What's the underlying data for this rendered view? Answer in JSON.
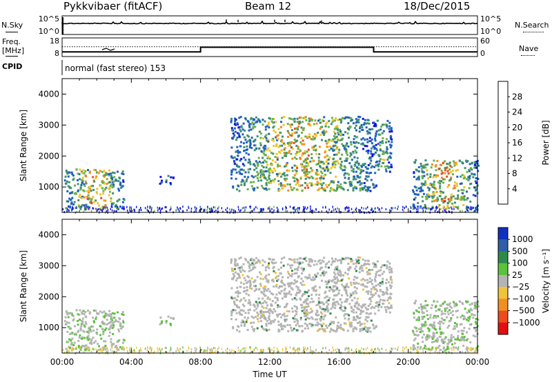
{
  "header": {
    "station": "Pykkvibaer (fitACF)",
    "beam": "Beam 12",
    "date": "18/Dec/2015"
  },
  "left_labels": {
    "nsky": "N.Sky",
    "freq_line1": "Freq.",
    "freq_line2": "[MHz]",
    "cpid": "CPID"
  },
  "right_labels": {
    "nsearch": "N.Search",
    "nave": "Nave"
  },
  "cpid_text": "normal (fast stereo) 153",
  "chart_data": [
    {
      "type": "line",
      "panel": "noise",
      "left_ticks": [
        "10^5",
        "10^0"
      ],
      "right_ticks": [
        "10^5",
        "10^0"
      ],
      "left_axis": "N.Sky",
      "right_axis": "N.Search",
      "grid": false
    },
    {
      "type": "line",
      "panel": "frequency",
      "left_ticks": [
        "18",
        "8"
      ],
      "right_ticks": [
        "60",
        "0"
      ],
      "left_axis": "Freq. [MHz]",
      "right_axis": "Nave",
      "freq_segments": [
        {
          "start_h": 0,
          "end_h": 8,
          "mhz": 10.5
        },
        {
          "start_h": 8,
          "end_h": 18,
          "mhz": 13.0
        },
        {
          "start_h": 18,
          "end_h": 24,
          "mhz": 10.5
        }
      ],
      "nave_level": 25,
      "grid": false
    },
    {
      "type": "heatmap",
      "panel": "power",
      "ylabel": "Slant Range [km]",
      "ylim": [
        180,
        4500
      ],
      "yticks": [
        "1000",
        "2000",
        "3000",
        "4000"
      ],
      "xlim_h": [
        0,
        24
      ],
      "colorbar_label": "Power [dB]",
      "colorbar_ticks": [
        "4",
        "8",
        "12",
        "16",
        "20",
        "24",
        "28"
      ],
      "colorbar_colors": [
        "#1010e0",
        "#2060c0",
        "#3f8f6f",
        "#69b24a",
        "#f2c423",
        "#f28a20",
        "#ee4a1c",
        "#e01010"
      ],
      "scatter_regions": [
        {
          "t0": 0.1,
          "t1": 3.6,
          "r0": 300,
          "r1": 1600,
          "kind": "low",
          "pmax": 30
        },
        {
          "t0": 5.6,
          "t1": 6.4,
          "r0": 1100,
          "r1": 1400,
          "kind": "low",
          "pmax": 10
        },
        {
          "t0": 9.7,
          "t1": 18.1,
          "r0": 900,
          "r1": 3300,
          "kind": "mid",
          "pmax": 28
        },
        {
          "t0": 18.0,
          "t1": 19.0,
          "r0": 1500,
          "r1": 3200,
          "kind": "mid",
          "pmax": 20
        },
        {
          "t0": 20.2,
          "t1": 24.0,
          "r0": 300,
          "r1": 1900,
          "kind": "low",
          "pmax": 30
        }
      ]
    },
    {
      "type": "heatmap",
      "panel": "velocity",
      "ylabel": "Slant Range [km]",
      "xlabel": "Time UT",
      "ylim": [
        180,
        4500
      ],
      "yticks": [
        "1000",
        "2000",
        "3000",
        "4000"
      ],
      "xticks": [
        "00:00",
        "04:00",
        "08:00",
        "12:00",
        "16:00",
        "20:00",
        "00:00"
      ],
      "xlim_h": [
        0,
        24
      ],
      "colorbar_label": "Velocity [m s⁻¹]",
      "colorbar_ticks": [
        "1000",
        "500",
        "100",
        "25",
        "−25",
        "−100",
        "−500",
        "−1000"
      ],
      "colorbar_colors": [
        "#1030c0",
        "#2f5fa8",
        "#2e8a4a",
        "#5cc23c",
        "#b4b4b4",
        "#f0c43a",
        "#f09020",
        "#ee4a1c",
        "#e01010"
      ]
    }
  ]
}
